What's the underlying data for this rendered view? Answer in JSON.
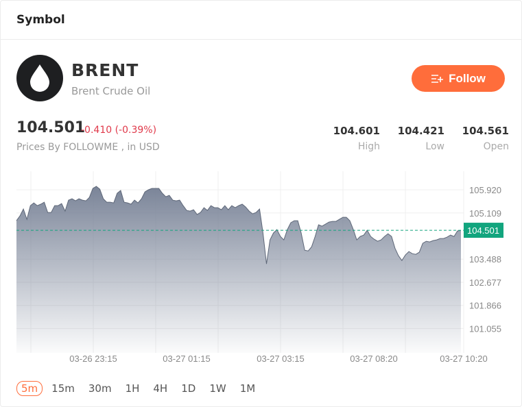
{
  "header": {
    "title": "Symbol"
  },
  "symbol": {
    "code": "BRENT",
    "name": "Brent Crude Oil",
    "icon": "oil-drop-icon"
  },
  "follow_button": {
    "label": "Follow",
    "icon": "add-list-icon",
    "color": "#ff6d3b"
  },
  "quote": {
    "price": "104.501",
    "change": "-0.410 (-0.39%)",
    "source": "Prices By FOLLOWME , in USD",
    "change_color": "#e0394a"
  },
  "stats": [
    {
      "value": "104.601",
      "label": "High"
    },
    {
      "value": "104.421",
      "label": "Low"
    },
    {
      "value": "104.561",
      "label": "Open"
    }
  ],
  "timeframes": {
    "items": [
      "5m",
      "15m",
      "30m",
      "1H",
      "4H",
      "1D",
      "1W",
      "1M"
    ],
    "selected": "5m"
  },
  "chart_data": {
    "type": "area",
    "title": "",
    "xlabel": "",
    "ylabel": "",
    "ylim": [
      100.2,
      106.57
    ],
    "y_ticks": [
      "105.920",
      "105.109",
      "103.488",
      "102.677",
      "101.866",
      "101.055"
    ],
    "x_ticks": [
      "03-26 23:15",
      "03-27 01:15",
      "03-27 03:15",
      "03-27 08:20",
      "03-27 10:20"
    ],
    "grid": true,
    "current_price": "104.501",
    "current_price_color": "#12a57e",
    "line_color": "#5e6778",
    "values": [
      104.837,
      105.005,
      105.246,
      104.885,
      105.366,
      105.463,
      105.366,
      105.415,
      105.487,
      105.126,
      105.126,
      105.366,
      105.366,
      105.439,
      105.174,
      105.559,
      105.607,
      105.535,
      105.607,
      105.559,
      105.535,
      105.655,
      105.968,
      106.04,
      105.944,
      105.607,
      105.487,
      105.487,
      105.463,
      105.8,
      105.896,
      105.487,
      105.463,
      105.415,
      105.559,
      105.463,
      105.607,
      105.848,
      105.92,
      105.968,
      105.968,
      105.968,
      105.8,
      105.679,
      105.727,
      105.559,
      105.535,
      105.559,
      105.366,
      105.198,
      105.174,
      105.222,
      105.053,
      105.126,
      105.294,
      105.198,
      105.366,
      105.294,
      105.294,
      105.222,
      105.366,
      105.222,
      105.366,
      105.294,
      105.366,
      105.415,
      105.318,
      105.174,
      105.078,
      105.126,
      105.246,
      104.404,
      103.32,
      104.163,
      104.404,
      104.524,
      104.283,
      104.163,
      104.524,
      104.765,
      104.837,
      104.837,
      104.404,
      103.802,
      103.778,
      103.922,
      104.283,
      104.692,
      104.644,
      104.716,
      104.789,
      104.813,
      104.813,
      104.885,
      104.957,
      104.957,
      104.837,
      104.524,
      104.163,
      104.283,
      104.331,
      104.5,
      104.283,
      104.187,
      104.115,
      104.163,
      104.283,
      104.38,
      104.283,
      103.874,
      103.609,
      103.441,
      103.633,
      103.754,
      103.681,
      103.657,
      103.73,
      104.043,
      104.115,
      104.091,
      104.139,
      104.163,
      104.211,
      104.211,
      104.259,
      104.331,
      104.283,
      104.476,
      104.501
    ]
  }
}
